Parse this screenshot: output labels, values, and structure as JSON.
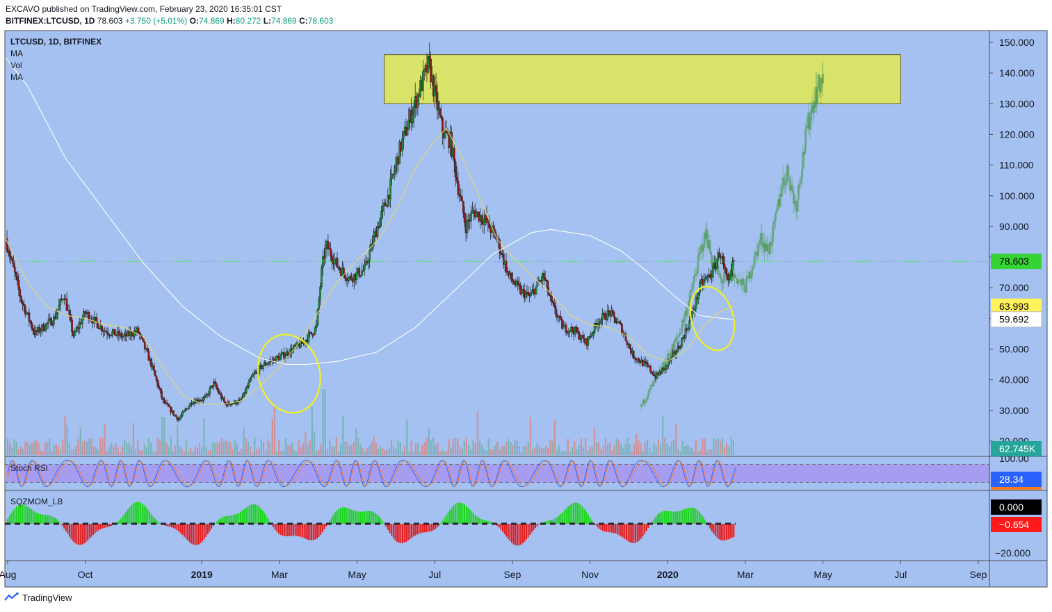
{
  "header": {
    "publisher": "EXCAVO published on TradingView.com, February 23, 2020 16:35:01 CST",
    "symbol_line": "BITFINEX:LTCUSD, 1D",
    "last": "78.603",
    "change": "+3.750 (+5.01%)",
    "o_label": "O:",
    "o": "74.869",
    "h_label": "H:",
    "h": "80.272",
    "l_label": "L:",
    "l": "74.869",
    "c_label": "C:",
    "c": "78.603"
  },
  "legend": {
    "title": "LTCUSD, 1D, BITFINEX",
    "items": [
      "MA",
      "Vol",
      "MA"
    ]
  },
  "badges": {
    "price": "78.603",
    "ma_fast": "63.993",
    "ma_slow": "59.692",
    "volume": "62.745K",
    "stoch": "28.34",
    "sqz_zero": "0.000",
    "sqz_val": "−0.654"
  },
  "panes": {
    "stoch_label": "Stoch RSI",
    "sqz_label": "SQZMOM_LB"
  },
  "colors": {
    "bg": "#a5c1f1",
    "zone": "#d9e36a",
    "up": "#1f8c3a",
    "down": "#8e1b1b",
    "ma_fast": "#e5d96a",
    "ma_slow": "#ffffff",
    "projection": "#4f9a56",
    "circle": "#f2ef22",
    "price_line": "#35d435",
    "stoch_band": "#a796f0",
    "sqz_pos": "#1bd61b",
    "sqz_neg": "#e51b1b"
  },
  "footer": {
    "brand": "TradingView",
    "logo_icon": "tradingview-logo-icon"
  },
  "chart_data": {
    "type": "candlestick",
    "title": "LTCUSD, 1D, BITFINEX",
    "price_axis": {
      "ticks": [
        "150.000",
        "140.000",
        "130.000",
        "120.000",
        "110.000",
        "100.000",
        "90.000",
        "80.000",
        "70.000",
        "60.000",
        "50.000",
        "40.000",
        "30.000",
        "20.000"
      ],
      "range": [
        20,
        150
      ]
    },
    "time_axis": {
      "labels": [
        {
          "text": "Aug",
          "bold": false,
          "t": 0.0
        },
        {
          "text": "Oct",
          "bold": false,
          "t": 2.0
        },
        {
          "text": "2019",
          "bold": true,
          "t": 5.0
        },
        {
          "text": "Mar",
          "bold": false,
          "t": 7.0
        },
        {
          "text": "May",
          "bold": false,
          "t": 9.0
        },
        {
          "text": "Jul",
          "bold": false,
          "t": 11.0
        },
        {
          "text": "Sep",
          "bold": false,
          "t": 13.0
        },
        {
          "text": "Nov",
          "bold": false,
          "t": 15.0
        },
        {
          "text": "2020",
          "bold": true,
          "t": 17.0
        },
        {
          "text": "Mar",
          "bold": false,
          "t": 19.0
        },
        {
          "text": "May",
          "bold": false,
          "t": 21.0
        },
        {
          "text": "Jul",
          "bold": false,
          "t": 23.0
        },
        {
          "text": "Sep",
          "bold": false,
          "t": 25.0
        }
      ],
      "unit": "months since Aug 2018",
      "range": [
        0,
        25.3
      ]
    },
    "price_path": [
      [
        -0.05,
        86
      ],
      [
        0.35,
        66
      ],
      [
        0.7,
        55
      ],
      [
        1.2,
        60
      ],
      [
        1.45,
        68
      ],
      [
        1.7,
        54
      ],
      [
        2.0,
        62
      ],
      [
        2.5,
        56
      ],
      [
        3.0,
        54
      ],
      [
        3.35,
        56
      ],
      [
        3.7,
        45
      ],
      [
        4.0,
        33
      ],
      [
        4.4,
        27
      ],
      [
        4.75,
        33
      ],
      [
        5.1,
        34
      ],
      [
        5.3,
        39
      ],
      [
        5.6,
        32
      ],
      [
        6.0,
        33
      ],
      [
        6.3,
        41
      ],
      [
        6.6,
        45
      ],
      [
        7.1,
        48
      ],
      [
        7.6,
        52
      ],
      [
        7.95,
        57
      ],
      [
        8.1,
        77
      ],
      [
        8.2,
        84
      ],
      [
        8.5,
        77
      ],
      [
        8.8,
        73
      ],
      [
        9.2,
        76
      ],
      [
        9.5,
        89
      ],
      [
        9.8,
        100
      ],
      [
        10.1,
        115
      ],
      [
        10.35,
        125
      ],
      [
        10.65,
        136
      ],
      [
        10.85,
        143
      ],
      [
        11.0,
        133
      ],
      [
        11.2,
        121
      ],
      [
        11.4,
        118
      ],
      [
        11.6,
        103
      ],
      [
        11.8,
        90
      ],
      [
        12.0,
        95
      ],
      [
        12.3,
        92
      ],
      [
        12.6,
        86
      ],
      [
        12.9,
        74
      ],
      [
        13.2,
        69
      ],
      [
        13.45,
        67
      ],
      [
        13.8,
        74
      ],
      [
        14.0,
        65
      ],
      [
        14.3,
        57
      ],
      [
        14.6,
        56
      ],
      [
        14.9,
        52
      ],
      [
        15.2,
        59
      ],
      [
        15.5,
        62
      ],
      [
        15.8,
        57
      ],
      [
        16.1,
        48
      ],
      [
        16.5,
        44
      ],
      [
        16.7,
        41
      ],
      [
        16.95,
        44
      ],
      [
        17.3,
        51
      ],
      [
        17.6,
        60
      ],
      [
        17.85,
        71
      ],
      [
        18.15,
        75
      ],
      [
        18.35,
        82
      ],
      [
        18.55,
        70
      ],
      [
        18.7,
        79
      ]
    ],
    "ma_fast": [
      [
        -0.05,
        86
      ],
      [
        0.5,
        72
      ],
      [
        1.0,
        64
      ],
      [
        1.5,
        61
      ],
      [
        2.0,
        60
      ],
      [
        2.5,
        58
      ],
      [
        3.0,
        57
      ],
      [
        3.5,
        54
      ],
      [
        4.0,
        44
      ],
      [
        4.5,
        35
      ],
      [
        5.0,
        32
      ],
      [
        5.5,
        32
      ],
      [
        6.0,
        33
      ],
      [
        6.5,
        38
      ],
      [
        7.0,
        44
      ],
      [
        7.5,
        52
      ],
      [
        8.0,
        62
      ],
      [
        8.5,
        72
      ],
      [
        9.0,
        79
      ],
      [
        9.5,
        85
      ],
      [
        10.0,
        95
      ],
      [
        10.5,
        109
      ],
      [
        11.0,
        118
      ],
      [
        11.3,
        122
      ],
      [
        11.8,
        110
      ],
      [
        12.2,
        98
      ],
      [
        12.6,
        86
      ],
      [
        13.0,
        80
      ],
      [
        13.5,
        74
      ],
      [
        14.0,
        68
      ],
      [
        14.5,
        61
      ],
      [
        15.0,
        58
      ],
      [
        15.5,
        57
      ],
      [
        16.0,
        54
      ],
      [
        16.5,
        48
      ],
      [
        17.0,
        46
      ],
      [
        17.5,
        50
      ],
      [
        17.9,
        57
      ],
      [
        18.3,
        62
      ],
      [
        18.7,
        64
      ]
    ],
    "ma_slow": [
      [
        -0.05,
        145
      ],
      [
        0.5,
        136
      ],
      [
        1.5,
        112
      ],
      [
        2.5,
        95
      ],
      [
        3.5,
        78
      ],
      [
        4.5,
        64
      ],
      [
        5.5,
        54
      ],
      [
        6.5,
        47
      ],
      [
        7.2,
        45
      ],
      [
        7.7,
        45
      ],
      [
        8.5,
        46
      ],
      [
        9.5,
        49
      ],
      [
        10.5,
        57
      ],
      [
        11.5,
        69
      ],
      [
        12.5,
        81
      ],
      [
        13.5,
        88
      ],
      [
        14.0,
        89
      ],
      [
        15.0,
        87
      ],
      [
        15.8,
        82
      ],
      [
        16.5,
        75
      ],
      [
        17.2,
        67
      ],
      [
        17.8,
        61
      ],
      [
        18.4,
        60
      ],
      [
        18.7,
        59.7
      ]
    ],
    "projection_path": [
      [
        16.3,
        31
      ],
      [
        16.6,
        38
      ],
      [
        16.95,
        46
      ],
      [
        17.3,
        55
      ],
      [
        17.6,
        68
      ],
      [
        17.85,
        82
      ],
      [
        18.0,
        88
      ],
      [
        18.15,
        78
      ],
      [
        18.4,
        72
      ],
      [
        18.7,
        74
      ],
      [
        19.0,
        70
      ],
      [
        19.2,
        78
      ],
      [
        19.4,
        86
      ],
      [
        19.6,
        82
      ],
      [
        19.75,
        90
      ],
      [
        19.95,
        104
      ],
      [
        20.1,
        108
      ],
      [
        20.3,
        96
      ],
      [
        20.45,
        110
      ],
      [
        20.6,
        122
      ],
      [
        20.75,
        131
      ],
      [
        20.9,
        136
      ],
      [
        21.0,
        139
      ]
    ],
    "resistance_zone": {
      "t_start": 9.7,
      "t_end": 23.0,
      "price_low": 130,
      "price_high": 146
    },
    "stoch_rsi": {
      "levels": [
        "100.00",
        "20.00"
      ],
      "band": [
        20,
        80
      ],
      "last": 28.34
    },
    "squeeze_momentum": {
      "ticks": [
        "0.000",
        "−20.000"
      ],
      "last": -0.654
    },
    "volume_last": "62.745K"
  }
}
